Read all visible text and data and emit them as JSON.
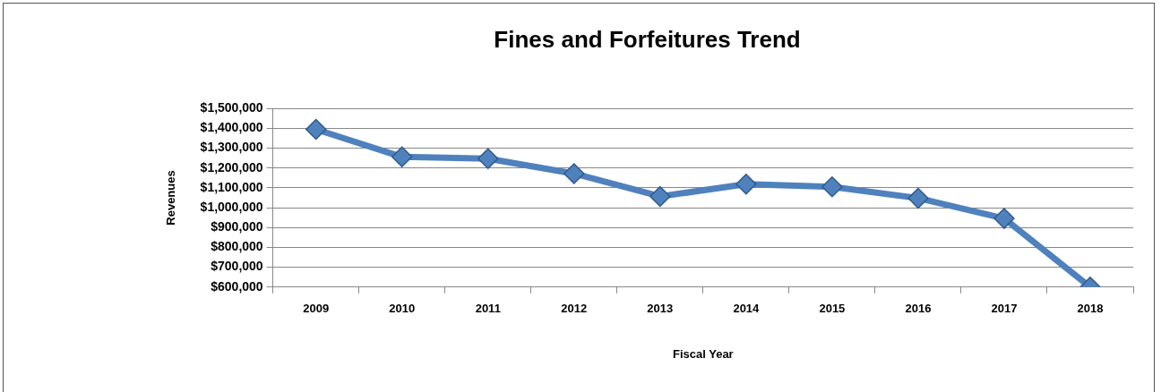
{
  "chart_data": {
    "type": "line",
    "title": "Fines and Forfeitures Trend",
    "xlabel": "Fiscal Year",
    "ylabel": "Revenues",
    "categories": [
      "2009",
      "2010",
      "2011",
      "2012",
      "2013",
      "2014",
      "2015",
      "2016",
      "2017",
      "2018"
    ],
    "series": [
      {
        "color": "#4f81bd",
        "values": [
          1395000,
          1256000,
          1247000,
          1172000,
          1057000,
          1119000,
          1105000,
          1048000,
          946000,
          600000
        ]
      }
    ],
    "ylim": [
      600000,
      1500000
    ],
    "yticks": [
      {
        "value": 600000,
        "label": "$600,000"
      },
      {
        "value": 700000,
        "label": "$700,000"
      },
      {
        "value": 800000,
        "label": "$800,000"
      },
      {
        "value": 900000,
        "label": "$900,000"
      },
      {
        "value": 1000000,
        "label": "$1,000,000"
      },
      {
        "value": 1100000,
        "label": "$1,100,000"
      },
      {
        "value": 1200000,
        "label": "$1,200,000"
      },
      {
        "value": 1300000,
        "label": "$1,300,000"
      },
      {
        "value": 1400000,
        "label": "$1,400,000"
      },
      {
        "value": 1500000,
        "label": "$1,500,000"
      }
    ],
    "grid": "y",
    "legend": false,
    "marker": "diamond",
    "line_style": "solid"
  }
}
